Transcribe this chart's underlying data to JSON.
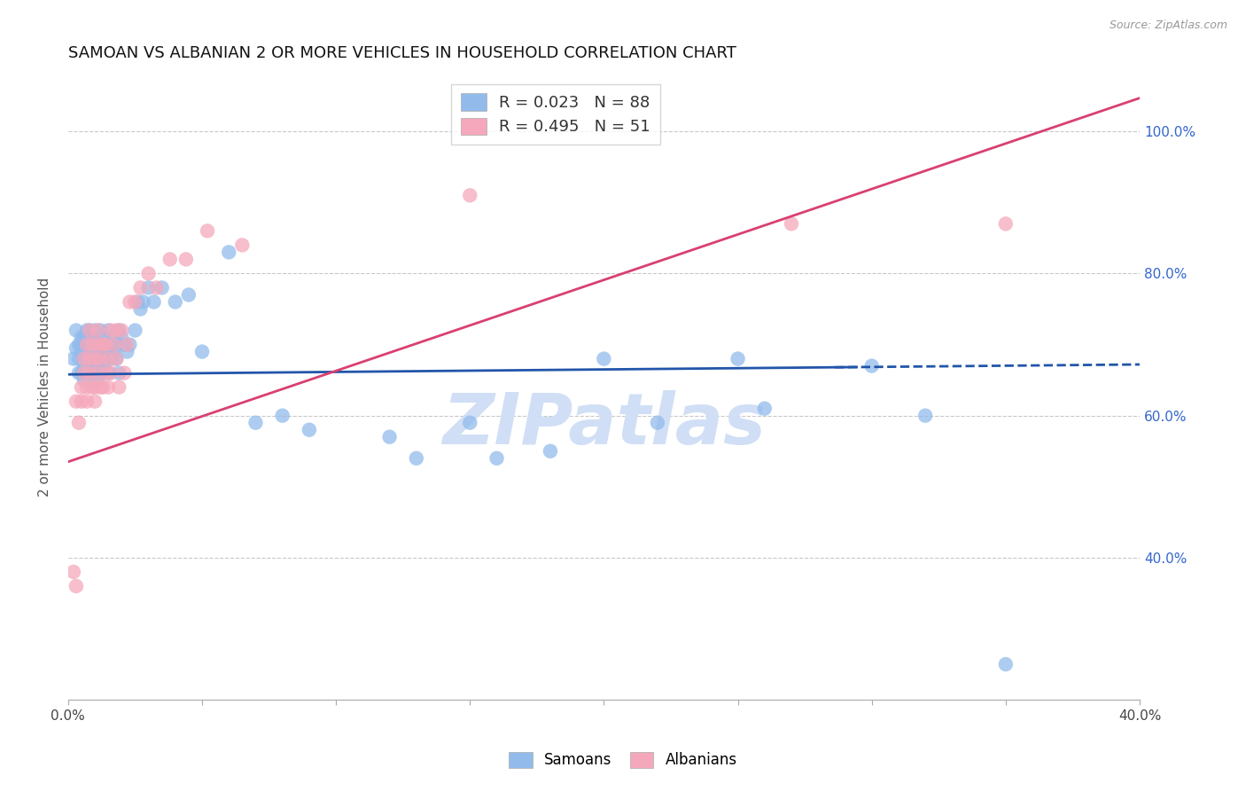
{
  "title": "SAMOAN VS ALBANIAN 2 OR MORE VEHICLES IN HOUSEHOLD CORRELATION CHART",
  "source": "Source: ZipAtlas.com",
  "ylabel": "2 or more Vehicles in Household",
  "xlim": [
    0.0,
    0.4
  ],
  "ylim": [
    0.2,
    1.08
  ],
  "yticks": [
    0.4,
    0.6,
    0.8,
    1.0
  ],
  "ytick_labels": [
    "40.0%",
    "60.0%",
    "80.0%",
    "100.0%"
  ],
  "xtick_positions": [
    0.0,
    0.05,
    0.1,
    0.15,
    0.2,
    0.25,
    0.3,
    0.35,
    0.4
  ],
  "xtick_labels": [
    "0.0%",
    "",
    "",
    "",
    "",
    "",
    "",
    "",
    "40.0%"
  ],
  "samoan_color": "#92bbec",
  "albanian_color": "#f5a8bb",
  "samoan_line_color": "#2255aa",
  "albanian_line_color": "#d94070",
  "watermark_text": "ZIPatlas",
  "watermark_color": "#d0dff5",
  "legend_samoan": "R = 0.023   N = 88",
  "legend_albanian": "R = 0.495   N = 51",
  "legend_text_color": "#333333",
  "legend_R_color": "#1a6bc4",
  "legend_N_color": "#cc0000",
  "bottom_legend_samoan": "Samoans",
  "bottom_legend_albanian": "Albanians",
  "background_color": "#ffffff",
  "grid_color": "#bbbbbb",
  "title_fontsize": 13,
  "axis_label_fontsize": 11,
  "tick_fontsize": 11,
  "legend_fontsize": 13,
  "samoan_line_intercept": 0.658,
  "samoan_line_slope": 0.035,
  "albanian_line_intercept": 0.535,
  "albanian_line_slope": 1.28,
  "samoan_x": [
    0.002,
    0.003,
    0.003,
    0.004,
    0.004,
    0.004,
    0.005,
    0.005,
    0.005,
    0.005,
    0.006,
    0.006,
    0.006,
    0.006,
    0.006,
    0.007,
    0.007,
    0.007,
    0.007,
    0.007,
    0.007,
    0.008,
    0.008,
    0.008,
    0.008,
    0.008,
    0.009,
    0.009,
    0.009,
    0.009,
    0.01,
    0.01,
    0.01,
    0.01,
    0.011,
    0.011,
    0.011,
    0.011,
    0.012,
    0.012,
    0.012,
    0.012,
    0.013,
    0.013,
    0.013,
    0.014,
    0.014,
    0.015,
    0.015,
    0.015,
    0.016,
    0.016,
    0.017,
    0.017,
    0.018,
    0.018,
    0.019,
    0.019,
    0.02,
    0.021,
    0.022,
    0.023,
    0.025,
    0.026,
    0.027,
    0.028,
    0.03,
    0.032,
    0.035,
    0.04,
    0.045,
    0.05,
    0.06,
    0.07,
    0.08,
    0.09,
    0.12,
    0.15,
    0.2,
    0.25,
    0.13,
    0.16,
    0.18,
    0.22,
    0.26,
    0.3,
    0.32,
    0.35
  ],
  "samoan_y": [
    0.68,
    0.695,
    0.72,
    0.66,
    0.7,
    0.68,
    0.71,
    0.69,
    0.66,
    0.7,
    0.65,
    0.68,
    0.71,
    0.69,
    0.67,
    0.72,
    0.7,
    0.68,
    0.66,
    0.695,
    0.71,
    0.68,
    0.7,
    0.66,
    0.72,
    0.69,
    0.67,
    0.7,
    0.68,
    0.71,
    0.695,
    0.66,
    0.72,
    0.68,
    0.7,
    0.67,
    0.69,
    0.65,
    0.72,
    0.68,
    0.7,
    0.66,
    0.71,
    0.69,
    0.67,
    0.7,
    0.68,
    0.72,
    0.69,
    0.66,
    0.7,
    0.68,
    0.71,
    0.69,
    0.7,
    0.68,
    0.72,
    0.66,
    0.71,
    0.7,
    0.69,
    0.7,
    0.72,
    0.76,
    0.75,
    0.76,
    0.78,
    0.76,
    0.78,
    0.76,
    0.77,
    0.69,
    0.83,
    0.59,
    0.6,
    0.58,
    0.57,
    0.59,
    0.68,
    0.68,
    0.54,
    0.54,
    0.55,
    0.59,
    0.61,
    0.67,
    0.6,
    0.25
  ],
  "albanian_x": [
    0.002,
    0.003,
    0.004,
    0.005,
    0.005,
    0.006,
    0.006,
    0.007,
    0.007,
    0.007,
    0.008,
    0.008,
    0.008,
    0.009,
    0.009,
    0.01,
    0.01,
    0.01,
    0.011,
    0.011,
    0.011,
    0.012,
    0.012,
    0.013,
    0.013,
    0.014,
    0.014,
    0.015,
    0.015,
    0.016,
    0.016,
    0.017,
    0.018,
    0.018,
    0.019,
    0.02,
    0.021,
    0.022,
    0.023,
    0.025,
    0.027,
    0.03,
    0.033,
    0.038,
    0.044,
    0.052,
    0.065,
    0.15,
    0.27,
    0.35,
    0.003
  ],
  "albanian_y": [
    0.38,
    0.62,
    0.59,
    0.64,
    0.62,
    0.68,
    0.66,
    0.64,
    0.62,
    0.7,
    0.68,
    0.66,
    0.72,
    0.64,
    0.7,
    0.64,
    0.62,
    0.68,
    0.7,
    0.66,
    0.72,
    0.68,
    0.64,
    0.7,
    0.64,
    0.66,
    0.7,
    0.68,
    0.64,
    0.72,
    0.66,
    0.7,
    0.68,
    0.72,
    0.64,
    0.72,
    0.66,
    0.7,
    0.76,
    0.76,
    0.78,
    0.8,
    0.78,
    0.82,
    0.82,
    0.86,
    0.84,
    0.91,
    0.87,
    0.87,
    0.36
  ]
}
